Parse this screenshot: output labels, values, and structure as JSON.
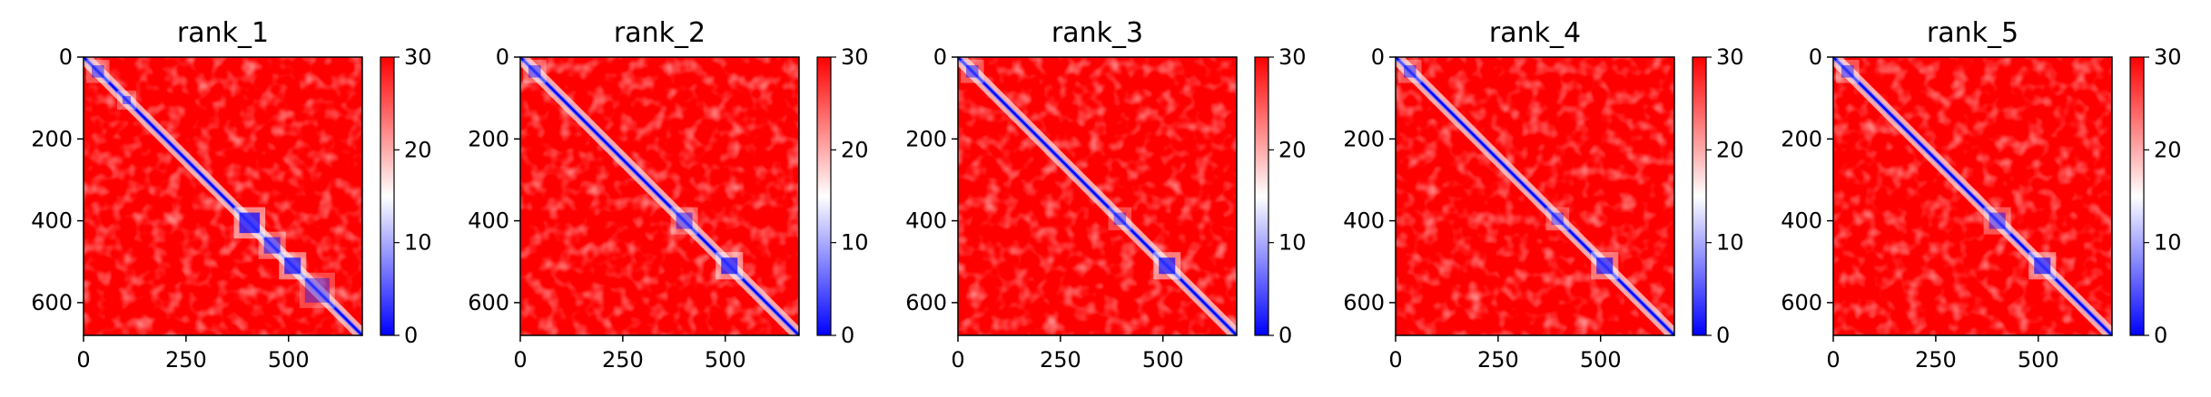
{
  "chart_data": [
    {
      "type": "heatmap",
      "title": "rank_1",
      "xlim": [
        0,
        680
      ],
      "ylim": [
        680,
        0
      ],
      "x_ticks": [
        0,
        250,
        500
      ],
      "y_ticks": [
        0,
        200,
        400,
        600
      ],
      "colorbar": {
        "min": 0,
        "max": 30,
        "ticks": [
          0,
          10,
          20,
          30
        ],
        "colormap": "bwr"
      },
      "features": [
        {
          "from": 380,
          "to": 430,
          "strength": 0.95
        },
        {
          "from": 440,
          "to": 480,
          "strength": 0.7
        },
        {
          "from": 490,
          "to": 530,
          "strength": 0.9
        },
        {
          "from": 540,
          "to": 600,
          "strength": 0.5
        },
        {
          "from": 20,
          "to": 50,
          "strength": 0.6
        },
        {
          "from": 95,
          "to": 115,
          "strength": 0.6
        }
      ]
    },
    {
      "type": "heatmap",
      "title": "rank_2",
      "xlim": [
        0,
        680
      ],
      "ylim": [
        680,
        0
      ],
      "x_ticks": [
        0,
        250,
        500
      ],
      "y_ticks": [
        0,
        200,
        400,
        600
      ],
      "colorbar": {
        "min": 0,
        "max": 30,
        "ticks": [
          0,
          10,
          20,
          30
        ],
        "colormap": "bwr"
      },
      "features": [
        {
          "from": 380,
          "to": 420,
          "strength": 0.6
        },
        {
          "from": 490,
          "to": 530,
          "strength": 0.9
        },
        {
          "from": 20,
          "to": 50,
          "strength": 0.6
        }
      ]
    },
    {
      "type": "heatmap",
      "title": "rank_3",
      "xlim": [
        0,
        680
      ],
      "ylim": [
        680,
        0
      ],
      "x_ticks": [
        0,
        250,
        500
      ],
      "y_ticks": [
        0,
        200,
        400,
        600
      ],
      "colorbar": {
        "min": 0,
        "max": 30,
        "ticks": [
          0,
          10,
          20,
          30
        ],
        "colormap": "bwr"
      },
      "features": [
        {
          "from": 380,
          "to": 410,
          "strength": 0.5
        },
        {
          "from": 490,
          "to": 530,
          "strength": 0.9
        },
        {
          "from": 20,
          "to": 50,
          "strength": 0.6
        }
      ]
    },
    {
      "type": "heatmap",
      "title": "rank_4",
      "xlim": [
        0,
        680
      ],
      "ylim": [
        680,
        0
      ],
      "x_ticks": [
        0,
        250,
        500
      ],
      "y_ticks": [
        0,
        200,
        400,
        600
      ],
      "colorbar": {
        "min": 0,
        "max": 30,
        "ticks": [
          0,
          10,
          20,
          30
        ],
        "colormap": "bwr"
      },
      "features": [
        {
          "from": 380,
          "to": 410,
          "strength": 0.5
        },
        {
          "from": 490,
          "to": 530,
          "strength": 0.85
        },
        {
          "from": 20,
          "to": 50,
          "strength": 0.6
        }
      ]
    },
    {
      "type": "heatmap",
      "title": "rank_5",
      "xlim": [
        0,
        680
      ],
      "ylim": [
        680,
        0
      ],
      "x_ticks": [
        0,
        250,
        500
      ],
      "y_ticks": [
        0,
        200,
        400,
        600
      ],
      "colorbar": {
        "min": 0,
        "max": 30,
        "ticks": [
          0,
          10,
          20,
          30
        ],
        "colormap": "bwr"
      },
      "features": [
        {
          "from": 380,
          "to": 420,
          "strength": 0.6
        },
        {
          "from": 490,
          "to": 530,
          "strength": 0.85
        },
        {
          "from": 20,
          "to": 50,
          "strength": 0.6
        }
      ]
    }
  ],
  "colors": {
    "low": "#0000ff",
    "mid": "#ffffff",
    "high": "#ff0000"
  }
}
